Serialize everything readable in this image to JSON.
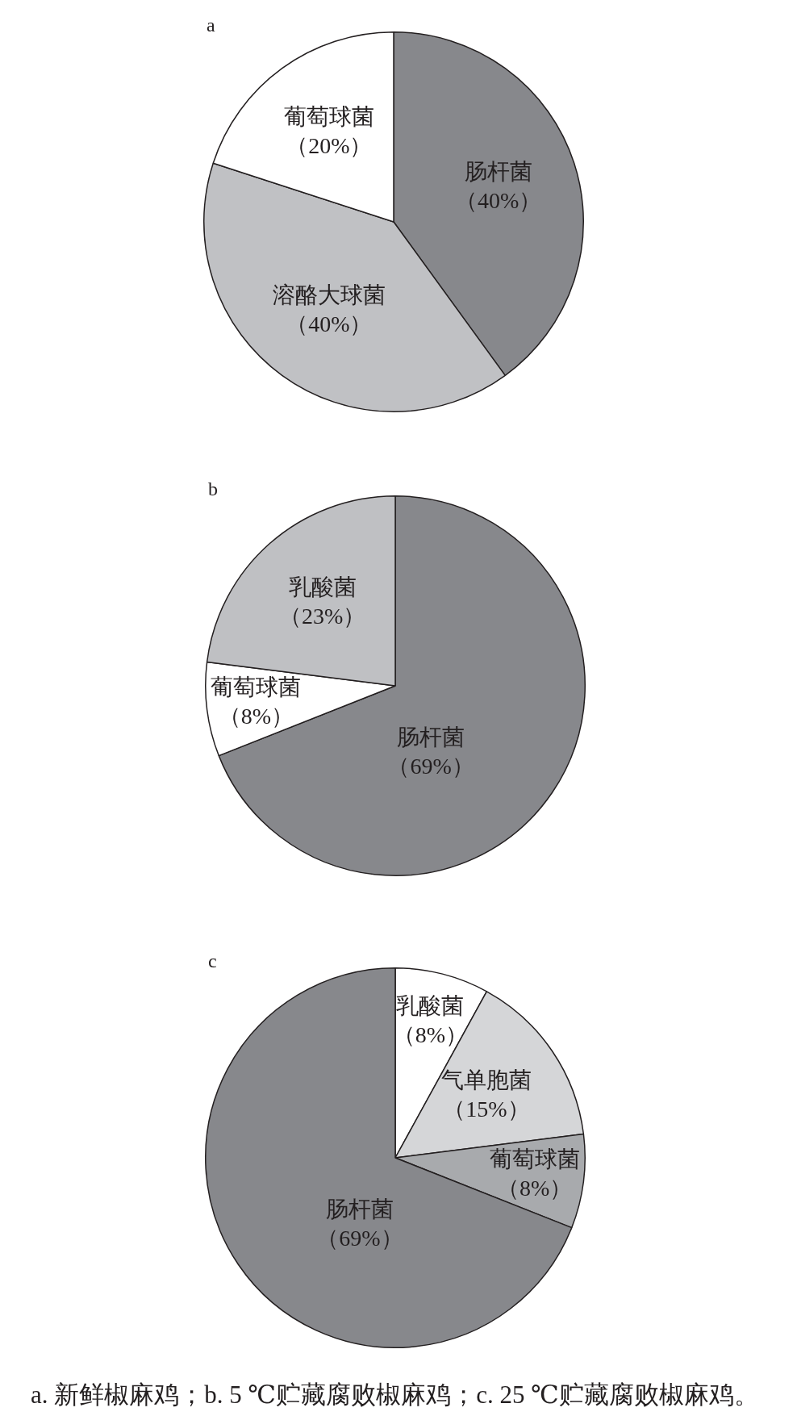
{
  "chart_data": [
    {
      "type": "pie",
      "title": "a",
      "categories": [
        "肠杆菌",
        "溶酪大球菌",
        "葡萄球菌"
      ],
      "values": [
        40,
        40,
        20
      ],
      "colors": [
        "#87888c",
        "#c0c1c4",
        "#ffffff"
      ],
      "value_labels": [
        "（40%）",
        "（40%）",
        "（20%）"
      ]
    },
    {
      "type": "pie",
      "title": "b",
      "categories": [
        "肠杆菌",
        "葡萄球菌",
        "乳酸菌"
      ],
      "values": [
        69,
        8,
        23
      ],
      "colors": [
        "#87888c",
        "#ffffff",
        "#bfc0c3"
      ],
      "value_labels": [
        "（69%）",
        "（8%）",
        "（23%）"
      ]
    },
    {
      "type": "pie",
      "title": "c",
      "categories": [
        "乳酸菌",
        "气单胞菌",
        "葡萄球菌",
        "肠杆菌"
      ],
      "values": [
        8,
        15,
        8,
        69
      ],
      "colors": [
        "#ffffff",
        "#d5d6d8",
        "#a8aaad",
        "#87888c"
      ],
      "value_labels": [
        "（8%）",
        "（15%）",
        "（8%）",
        "（69%）"
      ],
      "annotations": [
        "a. 新鲜椒麻鸡；b. 5 ℃贮藏腐败椒麻鸡；c. 25 ℃贮藏腐败椒麻鸡。"
      ]
    }
  ]
}
